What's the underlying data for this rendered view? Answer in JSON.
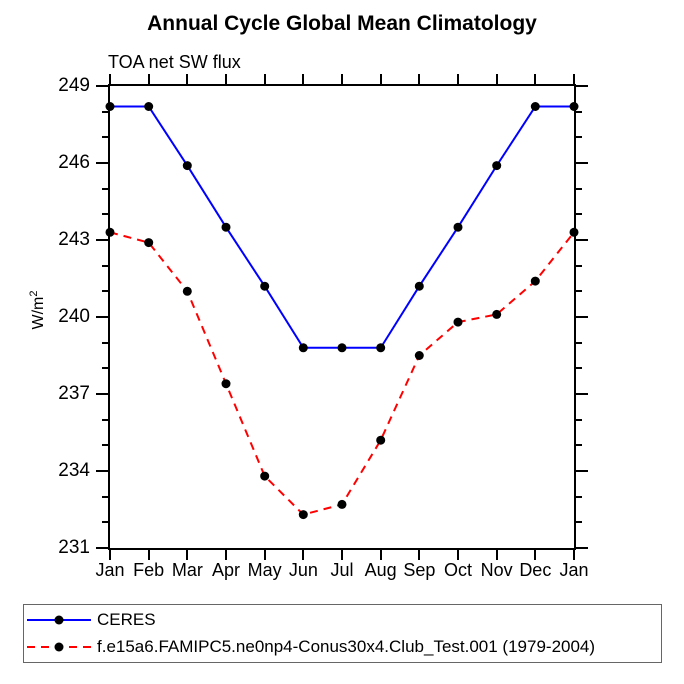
{
  "chart_data": {
    "type": "line",
    "title": "Annual Cycle Global Mean Climatology",
    "subtitle": "TOA net SW flux",
    "ylabel": "W/m²",
    "ylabel_base": "W/m",
    "ylabel_sup": "2",
    "x_categories": [
      "Jan",
      "Feb",
      "Mar",
      "Apr",
      "May",
      "Jun",
      "Jul",
      "Aug",
      "Sep",
      "Oct",
      "Nov",
      "Dec",
      "Jan"
    ],
    "ylim": [
      231,
      249
    ],
    "ytick_labels": [
      "249",
      "246",
      "243",
      "240",
      "237",
      "234",
      "231"
    ],
    "ytick_interval_major": 3,
    "ytick_interval_minor": 1,
    "grid": false,
    "legend_position": "bottom",
    "axis_color": "#000000",
    "marker_color": "#000000",
    "series": [
      {
        "name": "CERES",
        "color": "#0000ff",
        "line_style": "solid",
        "marker": "circle",
        "values": [
          248.2,
          248.2,
          245.9,
          243.5,
          241.2,
          238.8,
          238.8,
          238.8,
          241.2,
          243.5,
          245.9,
          248.2,
          248.2
        ]
      },
      {
        "name": "f.e15a6.FAMIPC5.ne0np4-Conus30x4.Club_Test.001 (1979-2004)",
        "color": "#ff0000",
        "line_style": "dashed",
        "marker": "circle",
        "values": [
          243.3,
          242.9,
          241.0,
          237.4,
          233.8,
          232.3,
          232.7,
          235.2,
          238.5,
          239.8,
          240.1,
          241.4,
          243.3
        ]
      }
    ]
  }
}
